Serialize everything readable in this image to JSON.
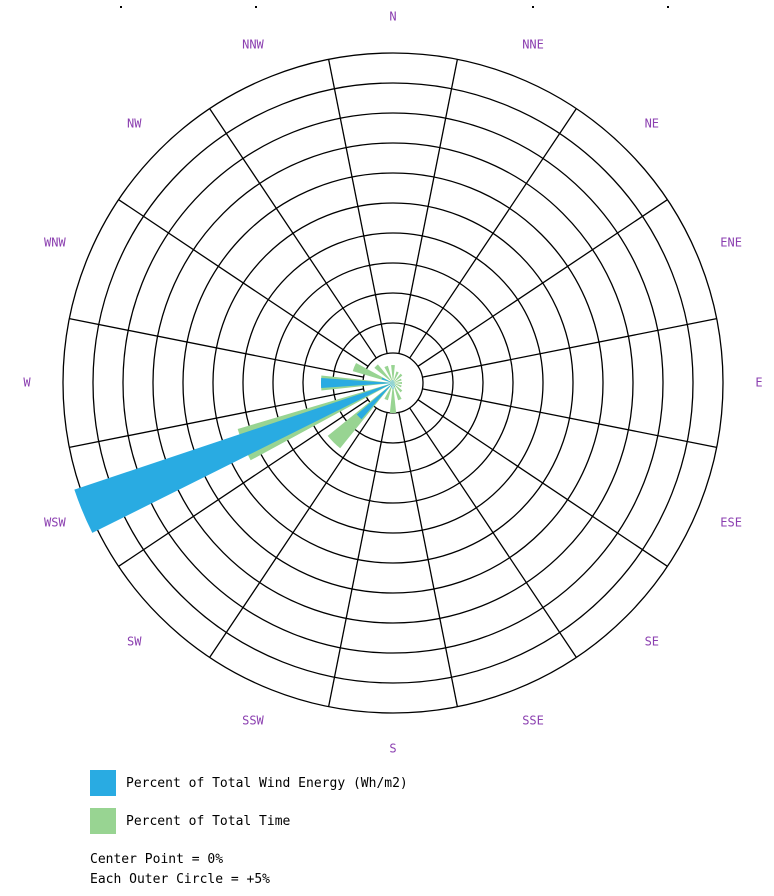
{
  "chart_data": {
    "type": "wind-rose",
    "directions": [
      "N",
      "NNE",
      "NE",
      "ENE",
      "E",
      "ESE",
      "SE",
      "SSE",
      "S",
      "SSW",
      "SW",
      "WSW",
      "W",
      "WNW",
      "NW",
      "NNW"
    ],
    "direction_labels": [
      "N",
      "NNE",
      "NE",
      "ENE",
      "E",
      "ESE",
      "SE",
      "SSE",
      "S",
      "SSW",
      "SW",
      "WSW",
      "W",
      "WNW",
      "NW",
      "NNW"
    ],
    "series": [
      {
        "name": "Percent of Total Wind Energy (Wh/m2)",
        "color": "#29abe2",
        "values": [
          0.5,
          0.3,
          0.3,
          0.3,
          0.3,
          0.3,
          0.5,
          0.7,
          1.0,
          0.8,
          8.0,
          56,
          12,
          2.0,
          0.5,
          0.5
        ]
      },
      {
        "name": "Percent of Total Time",
        "color": "#98d492",
        "values": [
          3.0,
          2.0,
          2.0,
          1.5,
          1.5,
          1.5,
          2.0,
          3.0,
          5.0,
          3.0,
          14,
          27,
          12,
          7.0,
          4.0,
          3.0
        ]
      }
    ],
    "center_value": 0,
    "ring_step": 5,
    "rings": 11,
    "spokes": 16,
    "legend_position": "bottom-left"
  },
  "legend": {
    "energy_label": "Percent of Total Wind Energy (Wh/m2)",
    "time_label": "Percent of Total Time"
  },
  "notes": {
    "center_point": "Center Point = 0%",
    "outer_circle": "Each Outer Circle = +5%"
  }
}
